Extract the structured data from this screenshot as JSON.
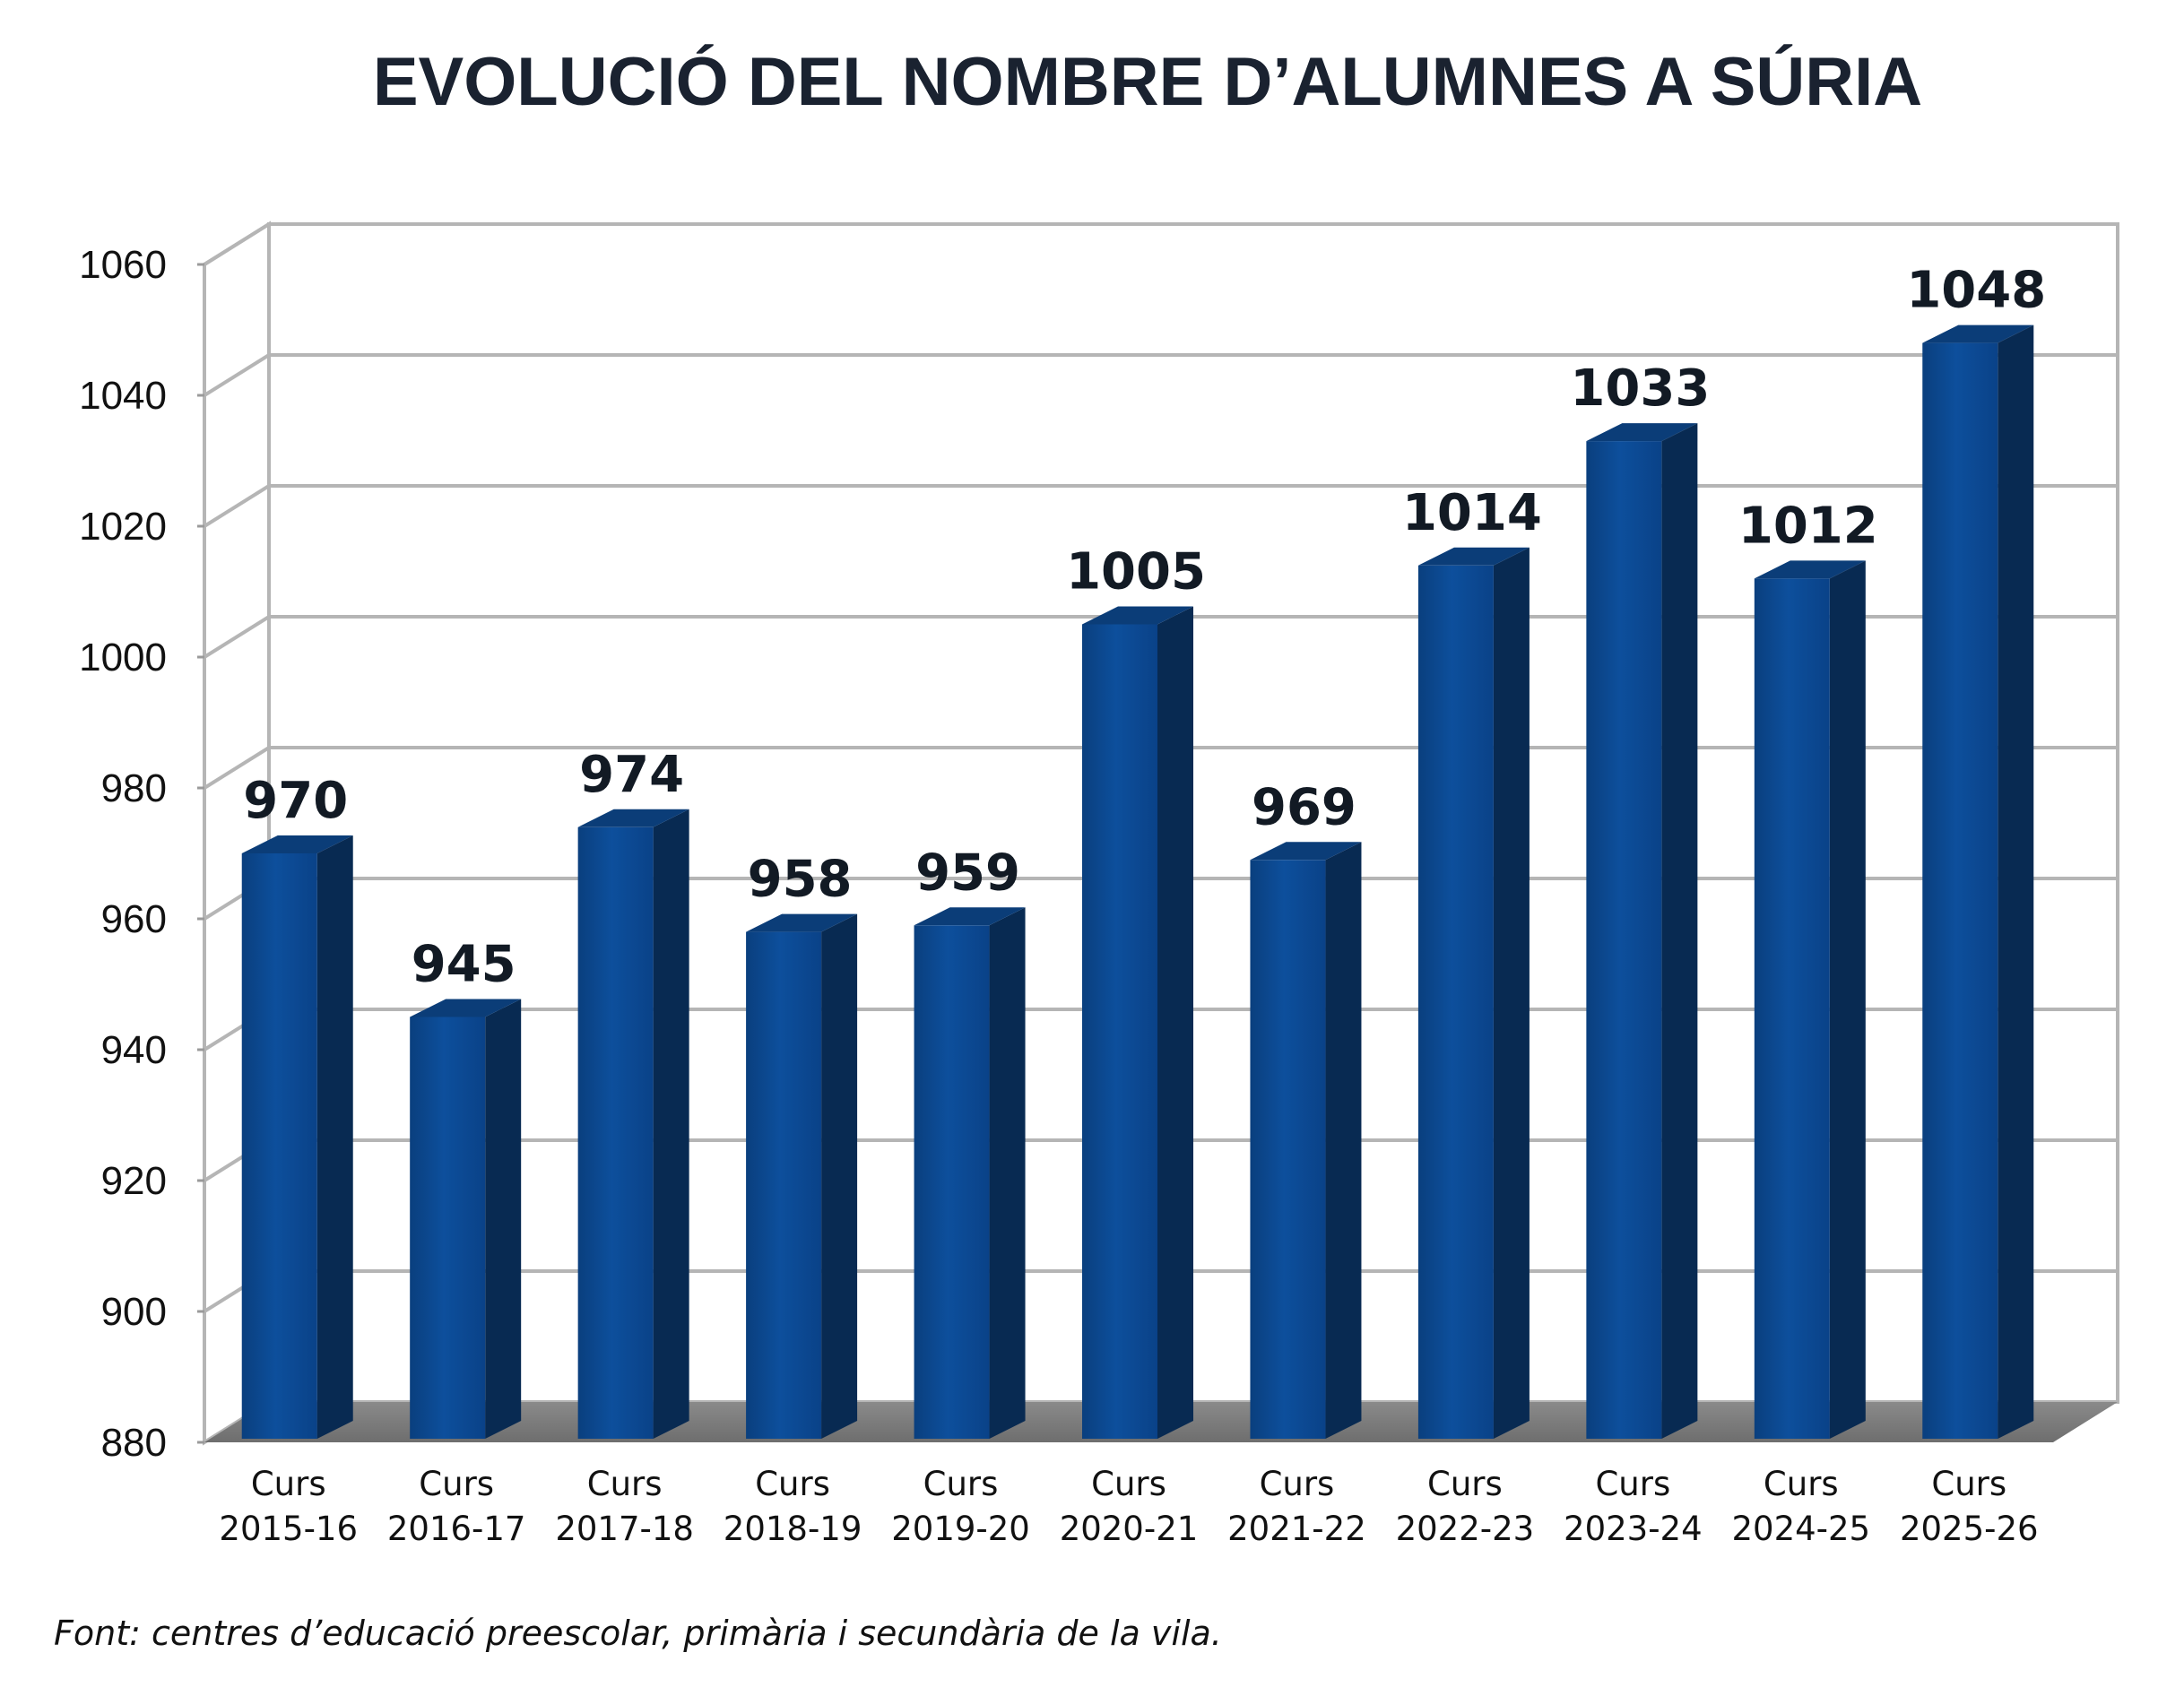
{
  "chart_data": {
    "type": "bar",
    "title": "EVOLUCIÓ DEL NOMBRE D’ALUMNES A SÚRIA",
    "categories": [
      [
        "Curs",
        "2015-16"
      ],
      [
        "Curs",
        "2016-17"
      ],
      [
        "Curs",
        "2017-18"
      ],
      [
        "Curs",
        "2018-19"
      ],
      [
        "Curs",
        "2019-20"
      ],
      [
        "Curs",
        "2020-21"
      ],
      [
        "Curs",
        "2021-22"
      ],
      [
        "Curs",
        "2022-23"
      ],
      [
        "Curs",
        "2023-24"
      ],
      [
        "Curs",
        "2024-25"
      ],
      [
        "Curs",
        "2025-26"
      ]
    ],
    "values": [
      970,
      945,
      974,
      958,
      959,
      1005,
      969,
      1014,
      1033,
      1012,
      1048
    ],
    "ylim": [
      880,
      1060
    ],
    "yticks": [
      880,
      900,
      920,
      940,
      960,
      980,
      1000,
      1020,
      1040,
      1060
    ],
    "xlabel": "",
    "ylabel": "",
    "grid": true,
    "style": "3d-columns",
    "bar_color": "#0a4a8f",
    "bar_side_color": "#082a52"
  },
  "source_note": "Font: centres d’educació preescolar, primària i secundària de la vila."
}
